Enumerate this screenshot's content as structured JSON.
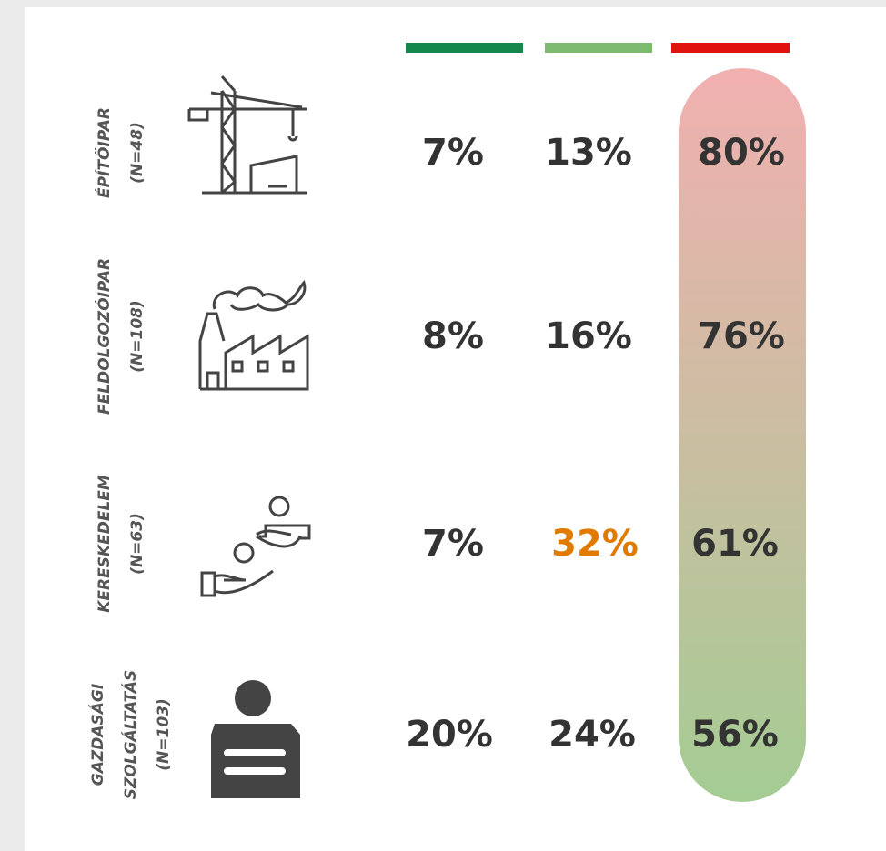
{
  "rows": [
    {
      "label": [
        "ÉPÍTŐIPAR"
      ],
      "n": "(N=48)",
      "values": [
        "7%",
        "13%",
        "80%"
      ],
      "colors": [
        "#333333",
        "#333333",
        "#333333"
      ]
    },
    {
      "label": [
        "FELDOLGOZÓIPAR"
      ],
      "n": "(N=108)",
      "values": [
        "8%",
        "16%",
        "76%"
      ],
      "colors": [
        "#333333",
        "#333333",
        "#333333"
      ]
    },
    {
      "label": [
        "KERESKEDELEM"
      ],
      "n": "(N=63)",
      "values": [
        "7%",
        "32%",
        "61%"
      ],
      "colors": [
        "#333333",
        "#e07b00",
        "#333333"
      ]
    },
    {
      "label": [
        "GAZDASÁGI",
        "SZOLGÁLTATÁS"
      ],
      "n": "(N=103)",
      "values": [
        "20%",
        "24%",
        "56%"
      ],
      "colors": [
        "#333333",
        "#333333",
        "#333333"
      ]
    }
  ],
  "header_colors": [
    "#15874c",
    "#7db96e",
    "#e0140f"
  ]
}
